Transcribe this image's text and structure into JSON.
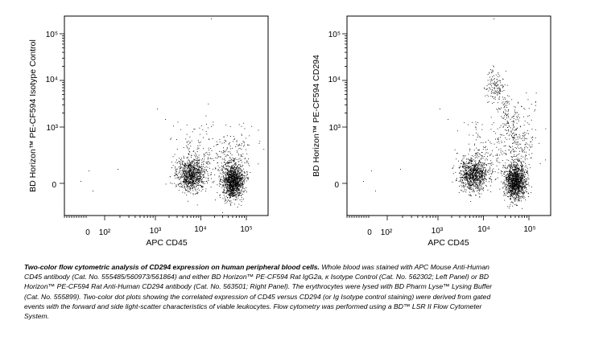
{
  "chart_data": [
    {
      "type": "scatter",
      "panel": "left",
      "xlabel": "APC CD45",
      "ylabel": "BD Horizon™ PE-CF594 Isotype Control",
      "x_scale": "biexponential",
      "y_scale": "biexponential",
      "x_ticks": [
        "0",
        "10²",
        "10³",
        "10⁴",
        "10⁵"
      ],
      "y_ticks": [
        "0",
        "10³",
        "10⁴",
        "10⁵"
      ],
      "populations": [
        {
          "cd45_center": 6000,
          "y_center": 30,
          "density": "high"
        },
        {
          "cd45_center": 50000,
          "y_center": 0,
          "density": "very high"
        }
      ]
    },
    {
      "type": "scatter",
      "panel": "right",
      "xlabel": "APC CD45",
      "ylabel": "BD Horizon™ PE-CF594 CD294",
      "x_scale": "biexponential",
      "y_scale": "biexponential",
      "x_ticks": [
        "0",
        "10²",
        "10³",
        "10⁴",
        "10⁵"
      ],
      "y_ticks": [
        "0",
        "10³",
        "10⁴",
        "10⁵"
      ],
      "populations": [
        {
          "cd45_center": 6000,
          "y_center": 30,
          "density": "high"
        },
        {
          "cd45_center": 50000,
          "y_center": 0,
          "density": "very high"
        },
        {
          "cd45_center": 20000,
          "y_center": 8000,
          "density": "low",
          "note": "CD294+ cells"
        }
      ]
    }
  ],
  "caption": {
    "lead": "Two-color flow cytometric analysis of CD294 expression on human peripheral blood cells.",
    "body": "Whole blood was stained with APC Mouse Anti-Human CD45 antibody (Cat. No. 555485/560973/561864) and either BD Horizon™ PE-CF594 Rat IgG2a, κ Isotype Control (Cat. No. 562302; Left Panel) or BD Horizon™ PE-CF594 Rat Anti-Human CD294 antibody (Cat. No. 563501; Right Panel). The erythrocytes were lysed with BD Pharm Lyse™ Lysing Buffer (Cat. No. 555899). Two-color dot plots showing the correlated expression of CD45 versus CD294 (or Ig Isotype control staining) were derived from gated events with the forward and side light-scatter characteristics of viable leukocytes. Flow cytometry was performed using a BD™ LSR II Flow Cytometer System."
  },
  "colors": {
    "dots": "#000000",
    "frame": "#000000",
    "background": "#ffffff"
  }
}
